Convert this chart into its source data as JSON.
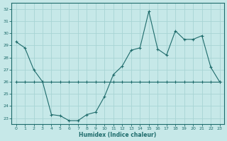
{
  "xlabel": "Humidex (Indice chaleur)",
  "ylabel": "",
  "bg_color": "#c6e8e8",
  "grid_color": "#a8d4d4",
  "line_color": "#1e6b6b",
  "xlim": [
    -0.5,
    23.5
  ],
  "ylim": [
    22.5,
    32.5
  ],
  "yticks": [
    23,
    24,
    25,
    26,
    27,
    28,
    29,
    30,
    31,
    32
  ],
  "xticks": [
    0,
    1,
    2,
    3,
    4,
    5,
    6,
    7,
    8,
    9,
    10,
    11,
    12,
    13,
    14,
    15,
    16,
    17,
    18,
    19,
    20,
    21,
    22,
    23
  ],
  "line1_x": [
    0,
    1,
    2,
    3,
    4,
    5,
    6,
    7,
    8,
    9,
    10,
    11,
    12,
    13,
    14,
    15,
    16,
    17,
    18,
    19,
    20,
    21,
    22,
    23
  ],
  "line1_y": [
    29.3,
    28.8,
    27.0,
    26.0,
    23.3,
    23.2,
    22.8,
    22.8,
    23.3,
    23.5,
    24.8,
    26.6,
    27.3,
    28.6,
    28.8,
    31.8,
    28.7,
    28.2,
    30.2,
    29.5,
    29.5,
    29.8,
    27.2,
    26.0
  ],
  "line2_x": [
    0,
    1,
    2,
    3,
    4,
    5,
    6,
    7,
    8,
    9,
    10,
    11,
    12,
    13,
    14,
    15,
    16,
    17,
    18,
    19,
    20,
    21,
    22,
    23
  ],
  "line2_y": [
    26.0,
    26.0,
    26.0,
    26.0,
    26.0,
    26.0,
    26.0,
    26.0,
    26.0,
    26.0,
    26.0,
    26.0,
    26.0,
    26.0,
    26.0,
    26.0,
    26.0,
    26.0,
    26.0,
    26.0,
    26.0,
    26.0,
    26.0,
    26.0
  ]
}
